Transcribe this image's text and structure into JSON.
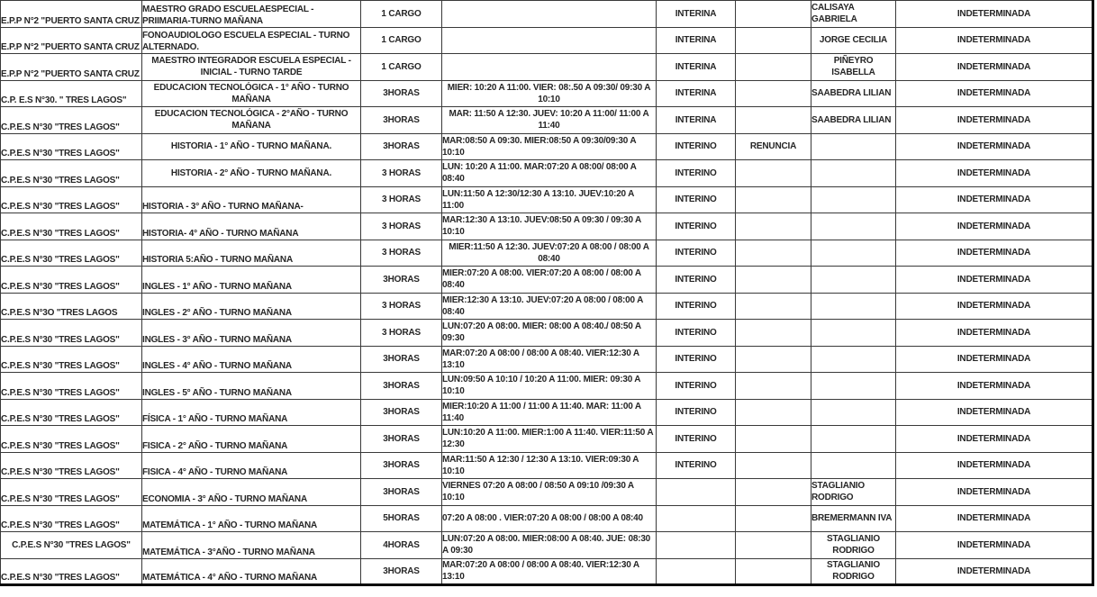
{
  "colors": {
    "background": "#ffffff",
    "text": "#262626",
    "grid_border": "#3a3a3a",
    "outer_border": "#000000"
  },
  "table": {
    "rows": [
      [
        "E.P.P N°2 \"PUERTO SANTA CRUZ",
        "MAESTRO GRADO ESCUELAESPECIAL - PRIIMARIA-TURNO MAÑANA",
        "1 CARGO",
        "",
        "INTERINA",
        "",
        "CALISAYA GABRIELA",
        "INDETERMINADA"
      ],
      [
        "E.P.P N°2 \"PUERTO SANTA CRUZ",
        "FONOAUDIOLOGO ESCUELA ESPECIAL - TURNO ALTERNADO.",
        "1 CARGO",
        "",
        "INTERINA",
        "",
        "JORGE CECILIA",
        "INDETERMINADA"
      ],
      [
        "E.P.P N°2 \"PUERTO SANTA CRUZ",
        "MAESTRO INTEGRADOR ESCUELA ESPECIAL - INICIAL - TURNO TARDE",
        "1 CARGO",
        "",
        "INTERINA",
        "",
        "PIÑEYRO ISABELLA",
        "INDETERMINADA"
      ],
      [
        "C.P. E.S N°30. \" TRES LAGOS\"",
        "EDUCACION TECNOLÓGICA - 1° AÑO - TURNO MAÑANA",
        "3HORAS",
        "MIER: 10:20 A 11:00. VIER: 08:.50 A 09:30/ 09:30 A 10:10",
        "INTERINA",
        "",
        "SAABEDRA LILIAN",
        "INDETERMINADA"
      ],
      [
        "C.P.E.S N°30 \"TRES LAGOS\"",
        "EDUCACION TECNOLÓGICA - 2°AÑO - TURNO MAÑANA",
        "3HORAS",
        "MAR: 11:50 A 12:30. JUEV: 10:20 A 11:00/ 11:00 A 11:40",
        "INTERINA",
        "",
        "SAABEDRA LILIAN",
        "INDETERMINADA"
      ],
      [
        "C.P.E.S N°30 \"TRES LAGOS\"",
        "HISTORIA - 1° AÑO - TURNO MAÑANA.",
        "3HORAS",
        "MAR:08:50 A 09:30. MIER:08:50 A 09:30/09:30 A 10:10",
        "INTERINO",
        "RENUNCIA",
        "",
        "INDETERMINADA"
      ],
      [
        "C.P.E.S N°30 \"TRES LAGOS\"",
        "HISTORIA - 2° AÑO - TURNO MAÑANA.",
        "3 HORAS",
        "LUN: 10:20 A 11:00. MAR:07:20 A 08:00/ 08:00 A 08:40",
        "INTERINO",
        "",
        "",
        "INDETERMINADA"
      ],
      [
        "C.P.E.S N°30 \"TRES LAGOS\"",
        "HISTORIA - 3° AÑO - TURNO MAÑANA-",
        "3 HORAS",
        "LUN:11:50 A 12:30/12:30 A 13:10. JUEV:10:20 A 11:00",
        "INTERINO",
        "",
        "",
        "INDETERMINADA"
      ],
      [
        "C.P.E.S N°30 \"TRES LAGOS\"",
        "HISTORIA- 4° AÑO - TURNO MAÑANA",
        "3 HORAS",
        "MAR:12:30 A 13:10. JUEV:08:50 A 09:30 / 09:30 A 10:10",
        "INTERINO",
        "",
        "",
        "INDETERMINADA"
      ],
      [
        "C.P.E.S N°30 \"TRES LAGOS\"",
        "HISTORIA 5:AÑO - TURNO MAÑANA",
        "3 HORAS",
        "MIER:11:50 A 12:30. JUEV:07:20 A 08:00 / 08:00 A 08:40",
        "INTERINO",
        "",
        "",
        "INDETERMINADA"
      ],
      [
        "C.P.E.S N°30 \"TRES LAGOS\"",
        "INGLES - 1° AÑO - TURNO MAÑANA",
        "3HORAS",
        "MIER:07:20 A 08:00. VIER:07:20 A 08:00 / 08:00 A 08:40",
        "INTERINO",
        "",
        "",
        "INDETERMINADA"
      ],
      [
        "C.P.E.S N°3O \"TRES LAGOS",
        "INGLES - 2° AÑO - TURNO MAÑANA",
        "3 HORAS",
        "MIER:12:30 A 13:10. JUEV:07:20 A 08:00 / 08:00 A 08:40",
        "INTERINO",
        "",
        "",
        "INDETERMINADA"
      ],
      [
        "C.P.E.S N°30 \"TRES LAGOS\"",
        "INGLES - 3° AÑO - TURNO MAÑANA",
        "3 HORAS",
        "LUN:07:20 A 08:00. MIER: 08:00 A 08:40./ 08:50 A 09:30",
        "INTERINO",
        "",
        "",
        "INDETERMINADA"
      ],
      [
        "C.P.E.S N°30 \"TRES LAGOS\"",
        "INGLES - 4° AÑO - TURNO MAÑANA",
        "3HORAS",
        "MAR:07:20 A 08:00 / 08:00 A 08:40. VIER:12:30 A 13:10",
        "INTERINO",
        "",
        "",
        "INDETERMINADA"
      ],
      [
        "C.P.E.S N°30 \"TRES LAGOS\"",
        "INGLES - 5° AÑO - TURNO MAÑANA",
        "3HORAS",
        "LUN:09:50 A 10:10 / 10:20 A 11:00. MIER: 09:30 A 10:10",
        "INTERINO",
        "",
        "",
        "INDETERMINADA"
      ],
      [
        "C.P.E.S N°30 \"TRES LAGOS\"",
        "FÍSICA - 1° AÑO - TURNO MAÑANA",
        "3HORAS",
        "MIER:10:20 A 11:00 / 11:00 A 11:40. MAR: 11:00 A 11:40",
        "INTERINO",
        "",
        "",
        "INDETERMINADA"
      ],
      [
        "C.P.E.S N°30 \"TRES LAGOS\"",
        "FISICA - 2° AÑO - TURNO MAÑANA",
        "3HORAS",
        "LUN:10:20 A 11:00. MIER:1:00 A 11:40. VIER:11:50 A 12:30",
        "INTERINO",
        "",
        "",
        "INDETERMINADA"
      ],
      [
        "C.P.E.S N°30 \"TRES LAGOS\"",
        "FISICA - 4° AÑO - TURNO MAÑANA",
        "3HORAS",
        "MAR:11:50 A 12:30 / 12:30 A 13:10. VIER:09:30 A 10:10",
        "INTERINO",
        "",
        "",
        "INDETERMINADA"
      ],
      [
        "C.P.E.S N°30 \"TRES LAGOS\"",
        "ECONOMIA - 3° AÑO - TURNO MAÑANA",
        "3HORAS",
        "VIERNES 07:20 A 08:00 / 08:50 A 09:10 /09:30 A 10:10",
        "",
        "",
        "STAGLIANIO RODRIGO",
        "INDETERMINADA"
      ],
      [
        "C.P.E.S N°30 \"TRES LAGOS\"",
        "MATEMÁTICA - 1° AÑO - TURNO MAÑANA",
        "5HORAS",
        "07:20 A 08:00 . VIER:07:20 A 08:00 / 08:00 A 08:40",
        "",
        "",
        "BREMERMANN IVA",
        "INDETERMINADA"
      ],
      [
        "C.P.E.S N°30 \"TRES LAGOS\"",
        "MATEMÁTICA - 3°AÑO - TURNO MAÑANA",
        "4HORAS",
        "LUN:07:20 A 08:00. MIER:08:00 A 08:40. JUE: 08:30 A 09:30",
        "",
        "",
        "STAGLIANIO RODRIGO",
        "INDETERMINADA"
      ],
      [
        "C.P.E.S N°30 \"TRES LAGOS\"",
        "MATEMÁTICA - 4° AÑO - TURNO MAÑANA",
        "3HORAS",
        "MAR:07:20 A 08:00 / 08:00 A 08:40. VIER:12:30 A 13:10",
        "",
        "",
        "STAGLIANIO RODRIGO",
        "INDETERMINADA"
      ]
    ]
  }
}
